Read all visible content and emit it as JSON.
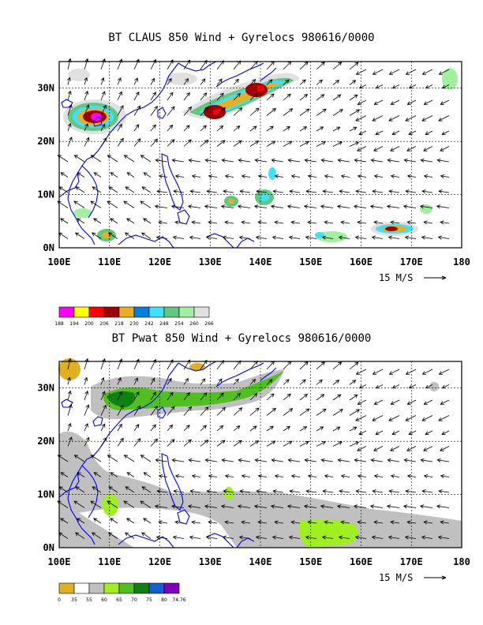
{
  "panels": [
    {
      "title": "BT CLAUS 850 Wind + Gyrelocs 980616/0000",
      "lon_ticks": [
        "100E",
        "110E",
        "120E",
        "130E",
        "140E",
        "150E",
        "160E",
        "170E",
        "180"
      ],
      "lat_ticks": [
        "0N",
        "10N",
        "20N",
        "30N"
      ],
      "wind_scale_label": "15 M/S",
      "legend_labels": [
        "188",
        "194",
        "200",
        "206",
        "218",
        "230",
        "242",
        "248",
        "254",
        "260",
        "266"
      ],
      "legend_colors": [
        "#ff00ff",
        "#ffff00",
        "#ff0000",
        "#a00000",
        "#e8b020",
        "#0080e0",
        "#40e0ff",
        "#60c880",
        "#a0f0a0",
        "#e0e0e0"
      ]
    },
    {
      "title": "BT Pwat 850 Wind + Gyrelocs 980616/0000",
      "lon_ticks": [
        "100E",
        "110E",
        "120E",
        "130E",
        "140E",
        "150E",
        "160E",
        "170E",
        "180"
      ],
      "lat_ticks": [
        "0N",
        "10N",
        "20N",
        "30N"
      ],
      "wind_scale_label": "15 M/S",
      "legend_labels": [
        "0",
        "35",
        "55",
        "60",
        "65",
        "70",
        "75",
        "80",
        "74.76"
      ],
      "legend_colors": [
        "#e0b020",
        "#ffffff",
        "#c0c0c0",
        "#a0f020",
        "#50c020",
        "#108010",
        "#1060d0",
        "#8000c0"
      ]
    }
  ],
  "map_extent": {
    "lon": [
      100,
      180
    ],
    "lat": [
      0,
      35
    ]
  },
  "colors": {
    "coast": "#0000ff",
    "grid": "#000000"
  }
}
